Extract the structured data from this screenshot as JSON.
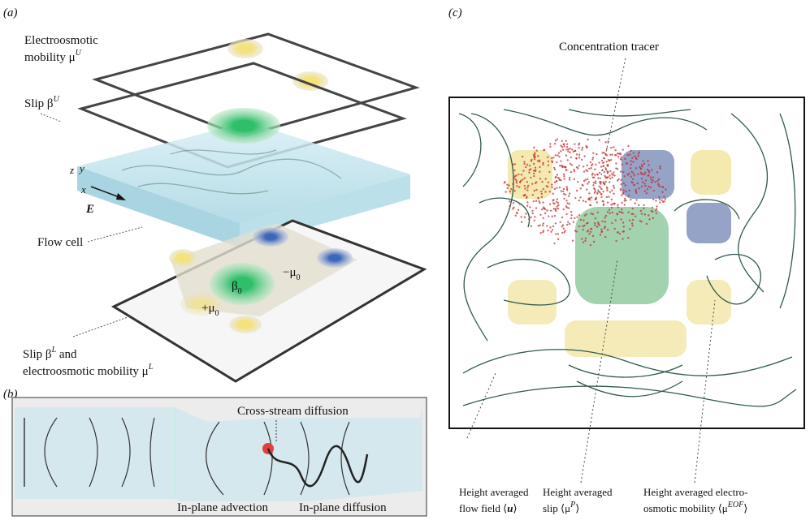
{
  "panel_a": {
    "label": "(a)",
    "upper_mobility": {
      "line1": "Electroosmotic",
      "line2": "mobility μ",
      "sup": "U"
    },
    "upper_slip": {
      "text": "Slip β",
      "sup": "U"
    },
    "axes": {
      "z": "z",
      "y": "y",
      "x": "x",
      "field": "E"
    },
    "flow_cell": "Flow cell",
    "minus_mu": {
      "text": "−μ",
      "sub": "0"
    },
    "beta": {
      "text": "β",
      "sub": "0"
    },
    "plus_mu": {
      "text": "+μ",
      "sub": "0"
    },
    "lower": {
      "line1a": "Slip β",
      "line1sup": "L",
      "line1b": " and",
      "line2": "electroosmotic mobility μ",
      "line2sup": "L"
    }
  },
  "panel_b": {
    "label": "(b)",
    "cross_stream": "Cross-stream diffusion",
    "advection": "In-plane advection",
    "diffusion": "In-plane diffusion"
  },
  "panel_c": {
    "label": "(c)",
    "tracer": "Concentration tracer",
    "flow": {
      "line1": "Height averaged",
      "line2": "flow field ⟨",
      "bold": "u",
      "close": "⟩"
    },
    "slip": {
      "line1": "Height averaged",
      "line2": "slip ⟨μ",
      "sup": "P",
      "close": "⟩"
    },
    "mobility": {
      "line1": "Height averaged electro-",
      "line2": "osmotic mobility ⟨μ",
      "sup": "EOF",
      "close": "⟩"
    }
  }
}
